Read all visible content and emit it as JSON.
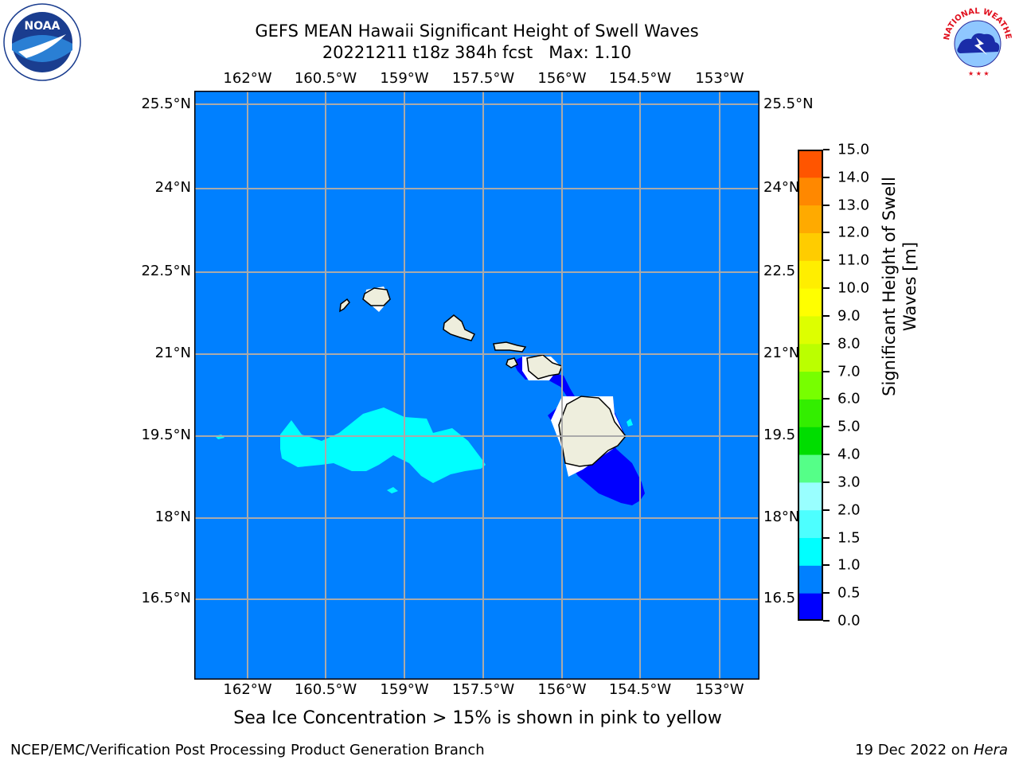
{
  "header": {
    "title_line1": "GEFS MEAN Hawaii Significant Height of Swell Waves",
    "title_line2": "20221211 t18z 384h fcst   Max: 1.10"
  },
  "logos": {
    "left": "NOAA",
    "left_ring_text": "NATIONAL OCEANIC AND ATMOSPHERIC ADMINISTRATION · U.S. DEPARTMENT OF COMMERCE",
    "right_ring_text": "NATIONAL WEATHER SERVICE"
  },
  "map": {
    "lon_ticks": [
      "162°W",
      "160.5°W",
      "159°W",
      "157.5°W",
      "156°W",
      "154.5°W",
      "153°W"
    ],
    "lat_ticks": [
      "25.5°N",
      "24°N",
      "22.5°N",
      "21°N",
      "19.5°N",
      "18°N",
      "16.5°N"
    ],
    "lat_ticks_right_visible": [
      "25.5°N",
      "24°N",
      "22.5",
      "21°N",
      "19.5",
      "18°N",
      "16.5"
    ],
    "colors": {
      "ocean_background": "#0080ff",
      "swell_1_to_1_5": "#00ffff",
      "swell_0_to_0_5": "#0000ff",
      "land": "#eeeedd",
      "grid": "#aaaaaa"
    }
  },
  "colorbar": {
    "title_line1": "Significant Height of Swell",
    "title_line2": "Waves [m]",
    "labels": [
      "15.0",
      "14.0",
      "13.0",
      "12.0",
      "11.0",
      "10.0",
      "9.0",
      "8.0",
      "7.0",
      "6.0",
      "5.0",
      "4.0",
      "3.0",
      "2.0",
      "1.5",
      "1.0",
      "0.5",
      "0.0"
    ],
    "colors_bottom_to_top": [
      "#0000ff",
      "#0080ff",
      "#00ffff",
      "#4dffff",
      "#99ffff",
      "#55ff88",
      "#00dd00",
      "#33ee00",
      "#77ff00",
      "#bbff00",
      "#ddff00",
      "#ffff00",
      "#ffee00",
      "#ffcc00",
      "#ffaa00",
      "#ff8800",
      "#ff5500",
      "#ff2200",
      "#ff0000"
    ]
  },
  "note": "Sea Ice Concentration > 15% is shown in pink to yellow",
  "footer": {
    "left": "NCEP/EMC/Verification Post Processing Product Generation Branch",
    "right_date": "19 Dec 2022 on ",
    "right_host": "Hera"
  }
}
